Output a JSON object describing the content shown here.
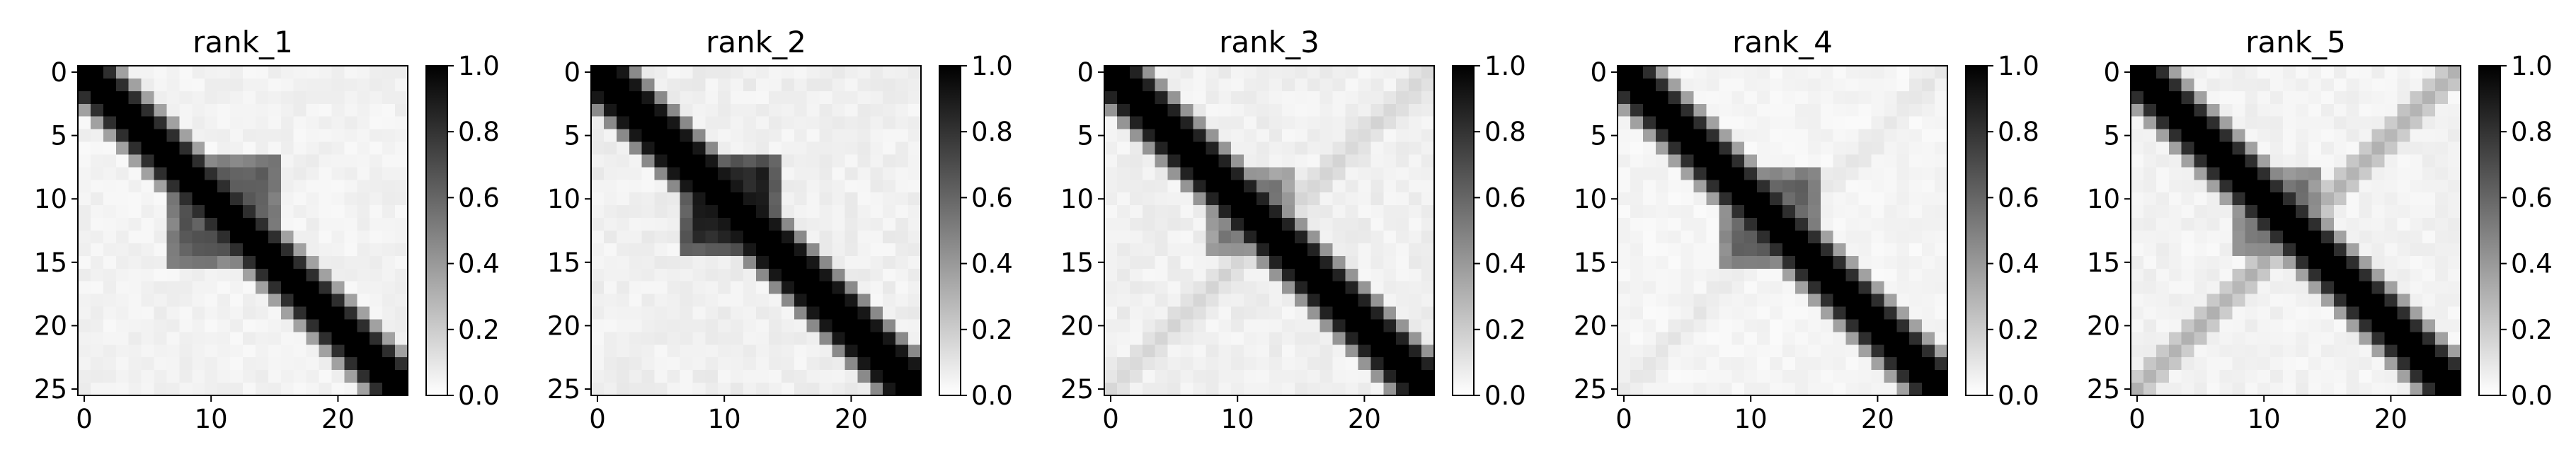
{
  "chart_data": [
    {
      "type": "heatmap",
      "title": "rank_1",
      "grid_size": 26,
      "colormap": "Greys",
      "x_ticks": [
        0,
        10,
        20
      ],
      "y_ticks": [
        0,
        5,
        10,
        15,
        20,
        25
      ],
      "xlim": [
        0,
        25
      ],
      "ylim": [
        25,
        0
      ],
      "colorbar_range": [
        0.0,
        1.0
      ],
      "colorbar_ticks": [
        "0.0",
        "0.2",
        "0.4",
        "0.6",
        "0.8",
        "1.0"
      ],
      "diagonal_band_width": 1.6,
      "blocks": [
        {
          "i_range": [
            7,
            15
          ],
          "j_range": [
            7,
            15
          ],
          "value": 0.6
        }
      ],
      "anti_diagonal_intensity": 0.04,
      "background_value": 0.05
    },
    {
      "type": "heatmap",
      "title": "rank_2",
      "grid_size": 26,
      "colormap": "Greys",
      "x_ticks": [
        0,
        10,
        20
      ],
      "y_ticks": [
        0,
        5,
        10,
        15,
        20,
        25
      ],
      "xlim": [
        0,
        25
      ],
      "ylim": [
        25,
        0
      ],
      "colorbar_range": [
        0.0,
        1.0
      ],
      "colorbar_ticks": [
        "0.0",
        "0.2",
        "0.4",
        "0.6",
        "0.8",
        "1.0"
      ],
      "diagonal_band_width": 1.8,
      "blocks": [
        {
          "i_range": [
            7,
            14
          ],
          "j_range": [
            7,
            14
          ],
          "value": 0.8
        }
      ],
      "anti_diagonal_intensity": 0.05,
      "background_value": 0.06
    },
    {
      "type": "heatmap",
      "title": "rank_3",
      "grid_size": 26,
      "colormap": "Greys",
      "x_ticks": [
        0,
        10,
        20
      ],
      "y_ticks": [
        0,
        5,
        10,
        15,
        20,
        25
      ],
      "xlim": [
        0,
        25
      ],
      "ylim": [
        25,
        0
      ],
      "colorbar_range": [
        0.0,
        1.0
      ],
      "colorbar_ticks": [
        "0.0",
        "0.2",
        "0.4",
        "0.6",
        "0.8",
        "1.0"
      ],
      "diagonal_band_width": 1.7,
      "blocks": [
        {
          "i_range": [
            8,
            14
          ],
          "j_range": [
            8,
            14
          ],
          "value": 0.45
        }
      ],
      "anti_diagonal_intensity": 0.14,
      "background_value": 0.06
    },
    {
      "type": "heatmap",
      "title": "rank_4",
      "grid_size": 26,
      "colormap": "Greys",
      "x_ticks": [
        0,
        10,
        20
      ],
      "y_ticks": [
        0,
        5,
        10,
        15,
        20,
        25
      ],
      "xlim": [
        0,
        25
      ],
      "ylim": [
        25,
        0
      ],
      "colorbar_range": [
        0.0,
        1.0
      ],
      "colorbar_ticks": [
        "0.0",
        "0.2",
        "0.4",
        "0.6",
        "0.8",
        "1.0"
      ],
      "diagonal_band_width": 1.6,
      "blocks": [
        {
          "i_range": [
            8,
            15
          ],
          "j_range": [
            8,
            15
          ],
          "value": 0.55
        }
      ],
      "anti_diagonal_intensity": 0.07,
      "background_value": 0.04
    },
    {
      "type": "heatmap",
      "title": "rank_5",
      "grid_size": 26,
      "colormap": "Greys",
      "x_ticks": [
        0,
        10,
        20
      ],
      "y_ticks": [
        0,
        5,
        10,
        15,
        20,
        25
      ],
      "xlim": [
        0,
        25
      ],
      "ylim": [
        25,
        0
      ],
      "colorbar_range": [
        0.0,
        1.0
      ],
      "colorbar_ticks": [
        "0.0",
        "0.2",
        "0.4",
        "0.6",
        "0.8",
        "1.0"
      ],
      "diagonal_band_width": 1.6,
      "blocks": [
        {
          "i_range": [
            8,
            14
          ],
          "j_range": [
            8,
            14
          ],
          "value": 0.5
        }
      ],
      "anti_diagonal_intensity": 0.28,
      "background_value": 0.05
    }
  ]
}
